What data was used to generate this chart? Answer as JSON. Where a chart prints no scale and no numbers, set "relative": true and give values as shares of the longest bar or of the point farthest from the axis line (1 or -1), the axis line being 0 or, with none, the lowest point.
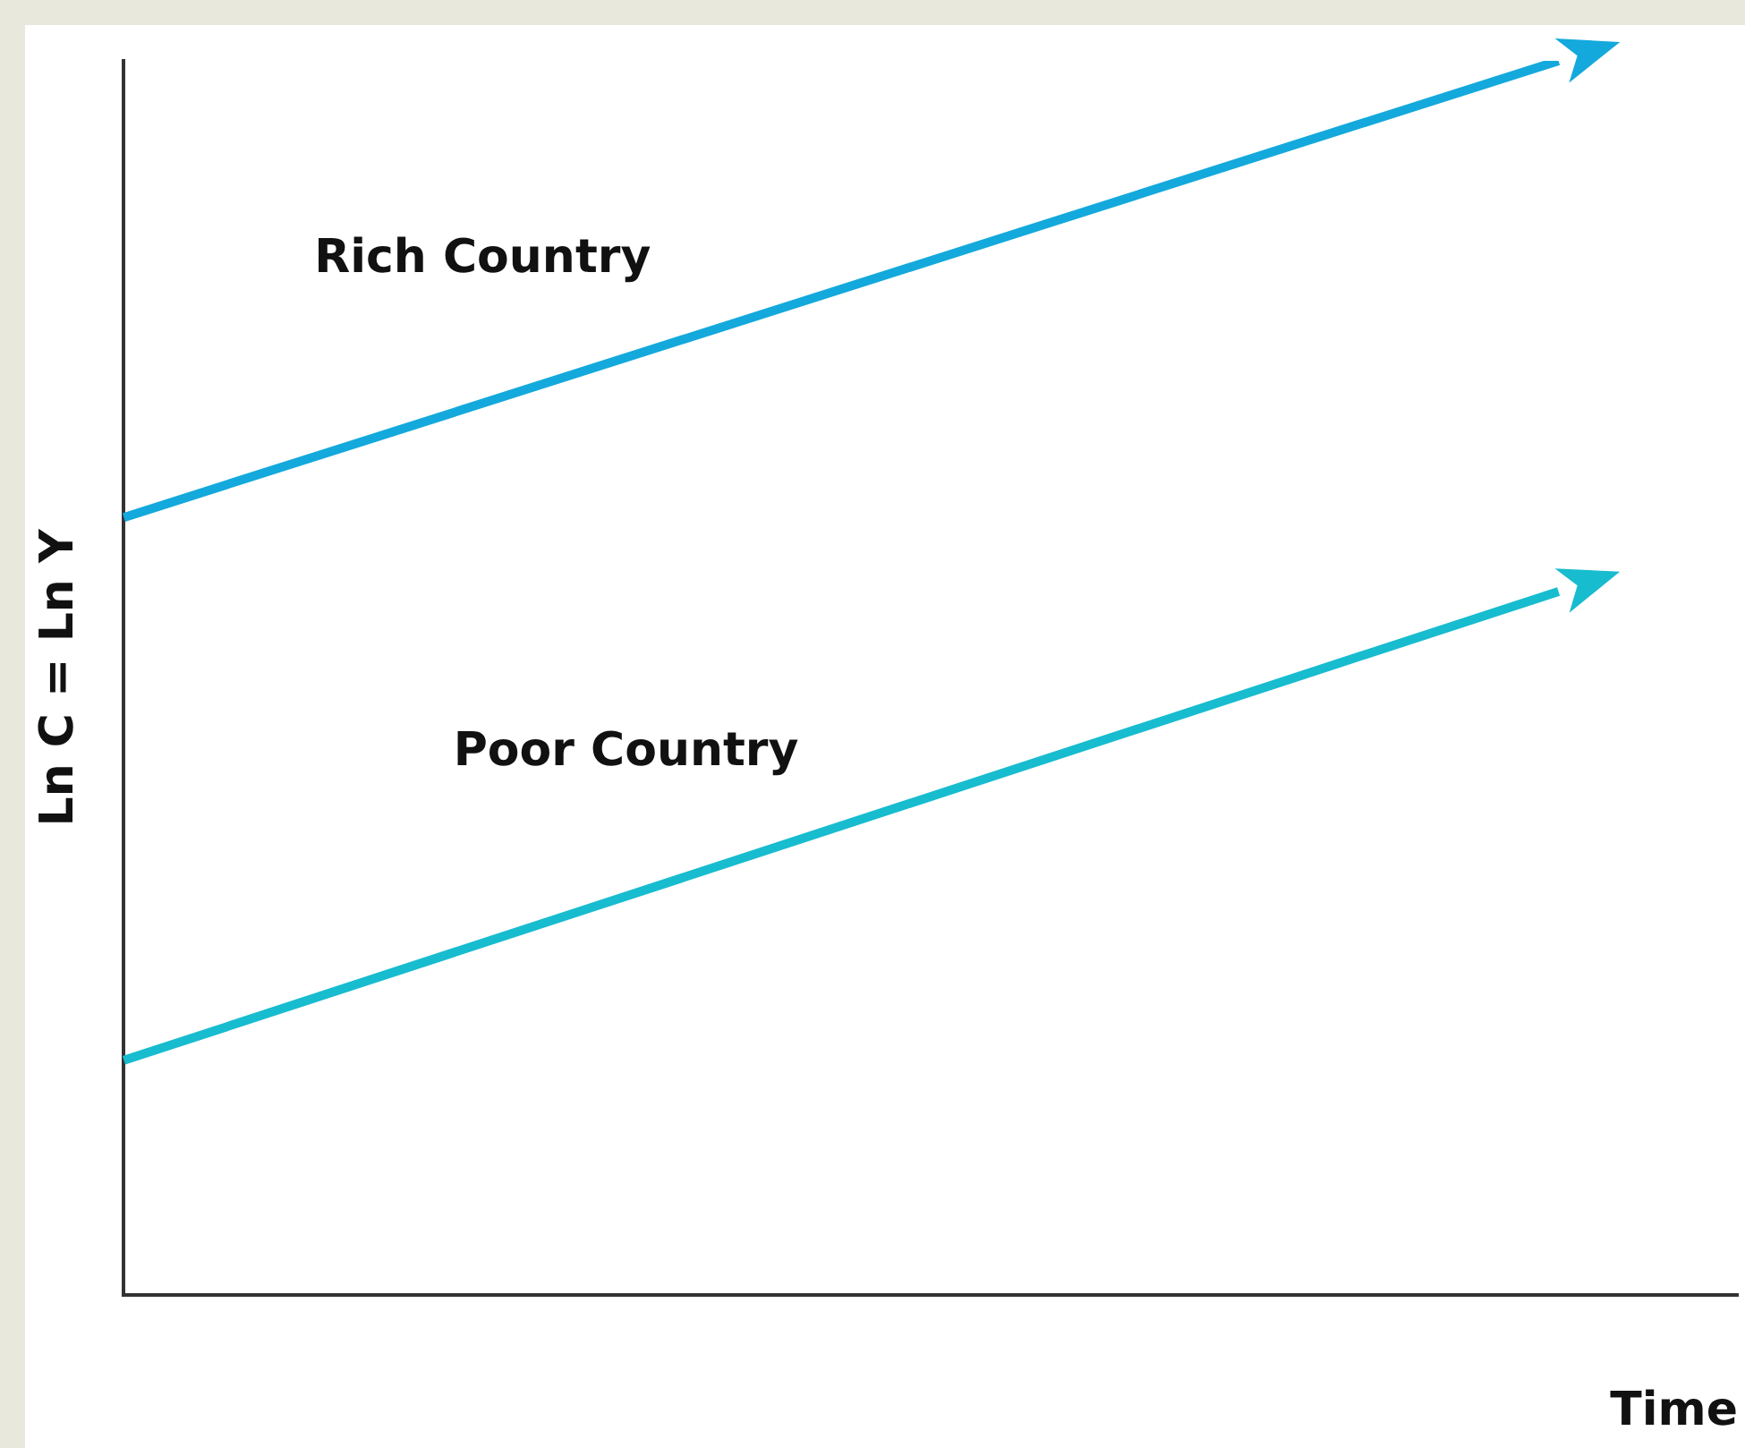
{
  "chart_data": {
    "type": "line",
    "relative": true,
    "xlabel": "Time",
    "ylabel": "Ln C = Ln Y",
    "categories": [
      null,
      null,
      null,
      null,
      null,
      null,
      null,
      null,
      null,
      null
    ],
    "legend": false,
    "grid": false,
    "marker": "none",
    "line_style": "solid",
    "series": [
      {
        "name": "Rich Country",
        "color": "#13a9dc",
        "values": [
          0.63,
          null,
          null,
          null,
          null,
          null,
          null,
          null,
          1,
          null
        ]
      },
      {
        "name": "Poor Country",
        "color": "#17bccf",
        "values": [
          0.19,
          null,
          null,
          null,
          null,
          null,
          null,
          null,
          0.57,
          null
        ]
      }
    ]
  }
}
